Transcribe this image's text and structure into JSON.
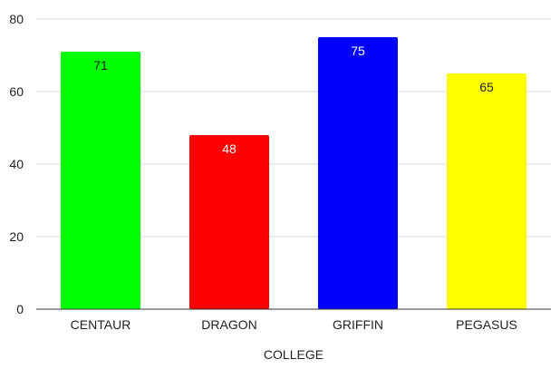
{
  "chart_data": {
    "type": "bar",
    "categories": [
      "CENTAUR",
      "DRAGON",
      "GRIFFIN",
      "PEGASUS"
    ],
    "values": [
      71,
      48,
      75,
      65
    ],
    "data_labels": [
      "71",
      "48",
      "75",
      "65"
    ],
    "colors": [
      "#00ff00",
      "#ff0000",
      "#0000ff",
      "#ffff00"
    ],
    "data_label_colors": [
      "#222222",
      "#ffffff",
      "#ffffff",
      "#222222"
    ],
    "xlabel": "COLLEGE",
    "ylabel": "",
    "ylim": [
      0,
      80
    ],
    "yticks": [
      0,
      20,
      40,
      60,
      80
    ],
    "ytick_labels": [
      "0",
      "20",
      "40",
      "60",
      "80"
    ],
    "grid": true,
    "legend": "none"
  }
}
